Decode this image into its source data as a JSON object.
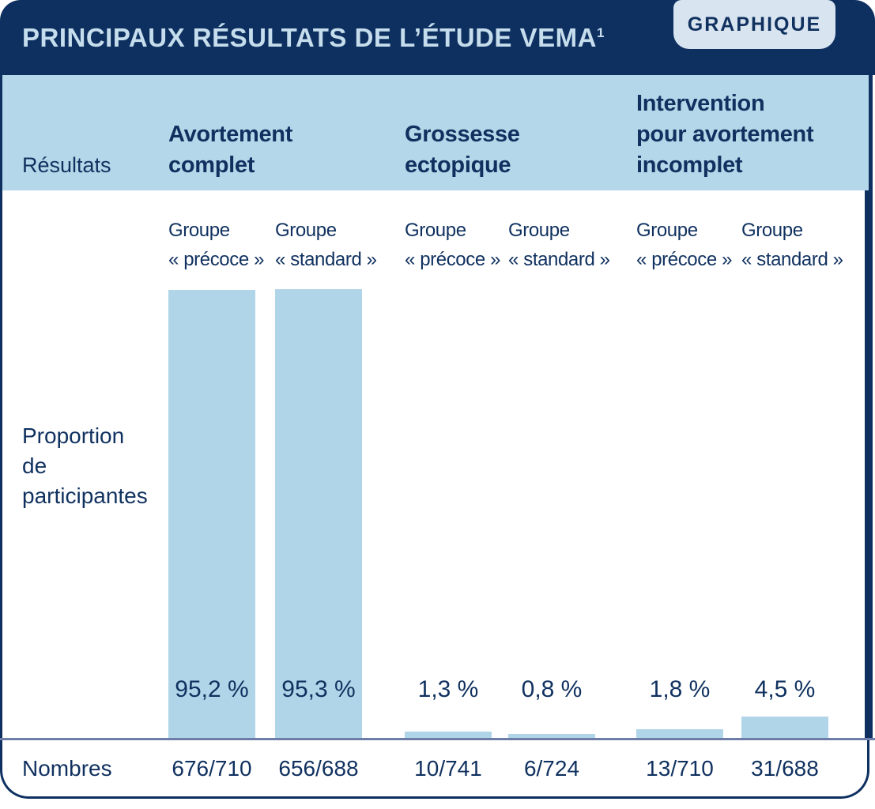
{
  "header": {
    "title": "PRINCIPAUX RÉSULTATS DE L’ÉTUDE VEMA",
    "title_superscript": "1",
    "badge_label": "GRAPHIQUE"
  },
  "band": {
    "row_label": "Résultats",
    "categories": [
      {
        "label": "Avortement\ncomplet"
      },
      {
        "label": "Grossesse\nectopique"
      },
      {
        "label": "Intervention\npour avortement\nincomplet"
      }
    ]
  },
  "chart": {
    "y_axis_label": "Proportion\nde\nparticipantes",
    "group_labels": [
      "Groupe\n« précoce »",
      "Groupe\n« standard »",
      "Groupe\n« précoce »",
      "Groupe\n« standard »",
      "Groupe\n« précoce »",
      "Groupe\n« standard »"
    ]
  },
  "footer": {
    "row_label": "Nombres"
  },
  "chart_data": {
    "type": "bar",
    "title": "PRINCIPAUX RÉSULTATS DE L’ÉTUDE VEMA¹",
    "ylabel": "Proportion de participantes",
    "ylim": [
      0,
      100
    ],
    "grid": false,
    "legend_position": "none",
    "categories": [
      "Avortement complet",
      "Grossesse ectopique",
      "Intervention pour avortement incomplet"
    ],
    "series": [
      {
        "name": "Groupe « précoce »",
        "values": [
          95.2,
          1.3,
          1.8
        ],
        "counts": [
          "676/710",
          "10/741",
          "13/710"
        ]
      },
      {
        "name": "Groupe « standard »",
        "values": [
          95.3,
          0.8,
          4.5
        ],
        "counts": [
          "656/688",
          "6/724",
          "31/688"
        ]
      }
    ],
    "bars": [
      {
        "category": "Avortement complet",
        "group": "Groupe « précoce »",
        "value_pct": 95.2,
        "pct_label": "95,2 %",
        "count": "676/710"
      },
      {
        "category": "Avortement complet",
        "group": "Groupe « standard »",
        "value_pct": 95.3,
        "pct_label": "95,3 %",
        "count": "656/688"
      },
      {
        "category": "Grossesse ectopique",
        "group": "Groupe « précoce »",
        "value_pct": 1.3,
        "pct_label": "1,3 %",
        "count": "10/741"
      },
      {
        "category": "Grossesse ectopique",
        "group": "Groupe « standard »",
        "value_pct": 0.8,
        "pct_label": "0,8 %",
        "count": "6/724"
      },
      {
        "category": "Intervention pour avortement incomplet",
        "group": "Groupe « précoce »",
        "value_pct": 1.8,
        "pct_label": "1,8 %",
        "count": "13/710"
      },
      {
        "category": "Intervention pour avortement incomplet",
        "group": "Groupe « standard »",
        "value_pct": 4.5,
        "pct_label": "4,5 %",
        "count": "31/688"
      }
    ]
  },
  "colors": {
    "navy": "#0e3060",
    "band_blue": "#b4d7e9",
    "bar_blue": "#b1d5e8",
    "badge_bg": "#d8e4f0",
    "title_text": "#c5ddec",
    "dark_text": "#10315f",
    "divider": "#6e7ca8"
  }
}
